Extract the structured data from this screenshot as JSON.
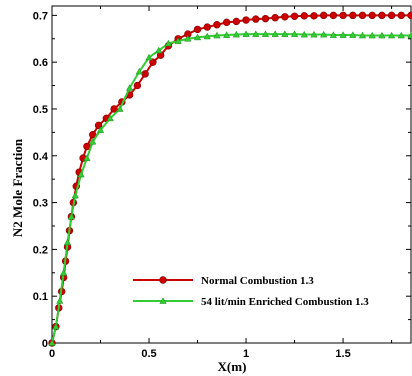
{
  "chart_data": {
    "type": "line",
    "xlabel": "X(m)",
    "ylabel": "N2 Mole Fraction",
    "xlim": [
      0,
      1.85
    ],
    "ylim": [
      0,
      0.72
    ],
    "x_ticks": [
      "0",
      "0.5",
      "1",
      "1.5"
    ],
    "y_ticks": [
      "0",
      "0.1",
      "0.2",
      "0.3",
      "0.4",
      "0.5",
      "0.6",
      "0.7"
    ],
    "x_tick_values": [
      0,
      0.5,
      1,
      1.5
    ],
    "y_tick_values": [
      0,
      0.1,
      0.2,
      0.3,
      0.4,
      0.5,
      0.6,
      0.7
    ],
    "legend_position": "lower-right",
    "grid": false,
    "series": [
      {
        "name": "Normal Combustion 1.3",
        "color": "#cc0000",
        "marker": "circle",
        "marker_color": "#cc0000",
        "x": [
          0,
          0.02,
          0.035,
          0.05,
          0.06,
          0.07,
          0.08,
          0.09,
          0.1,
          0.11,
          0.125,
          0.14,
          0.16,
          0.18,
          0.21,
          0.24,
          0.28,
          0.32,
          0.36,
          0.4,
          0.44,
          0.48,
          0.52,
          0.56,
          0.6,
          0.65,
          0.7,
          0.75,
          0.8,
          0.85,
          0.9,
          0.95,
          1.0,
          1.05,
          1.1,
          1.15,
          1.2,
          1.25,
          1.3,
          1.35,
          1.4,
          1.45,
          1.5,
          1.55,
          1.6,
          1.65,
          1.7,
          1.75,
          1.8,
          1.85
        ],
        "y": [
          0.0,
          0.035,
          0.075,
          0.11,
          0.14,
          0.175,
          0.205,
          0.24,
          0.27,
          0.3,
          0.335,
          0.365,
          0.395,
          0.42,
          0.445,
          0.465,
          0.48,
          0.5,
          0.515,
          0.53,
          0.55,
          0.575,
          0.6,
          0.615,
          0.635,
          0.65,
          0.66,
          0.67,
          0.675,
          0.68,
          0.685,
          0.687,
          0.69,
          0.692,
          0.693,
          0.695,
          0.697,
          0.698,
          0.699,
          0.699,
          0.7,
          0.7,
          0.7,
          0.7,
          0.7,
          0.7,
          0.7,
          0.7,
          0.7,
          0.7
        ]
      },
      {
        "name": "54 lit/min  Enriched Combustion 1.3",
        "color": "#33cc33",
        "marker": "triangle",
        "marker_color": "#33cc33",
        "x": [
          0,
          0.02,
          0.04,
          0.06,
          0.08,
          0.1,
          0.12,
          0.15,
          0.18,
          0.21,
          0.25,
          0.3,
          0.35,
          0.4,
          0.45,
          0.5,
          0.55,
          0.6,
          0.65,
          0.7,
          0.75,
          0.8,
          0.85,
          0.9,
          0.95,
          1.0,
          1.05,
          1.1,
          1.15,
          1.2,
          1.25,
          1.3,
          1.35,
          1.4,
          1.45,
          1.5,
          1.55,
          1.6,
          1.65,
          1.7,
          1.75,
          1.8,
          1.85
        ],
        "y": [
          0.0,
          0.035,
          0.09,
          0.15,
          0.215,
          0.27,
          0.315,
          0.36,
          0.395,
          0.43,
          0.455,
          0.48,
          0.5,
          0.545,
          0.58,
          0.61,
          0.625,
          0.64,
          0.645,
          0.65,
          0.653,
          0.655,
          0.657,
          0.658,
          0.659,
          0.66,
          0.66,
          0.66,
          0.66,
          0.66,
          0.66,
          0.659,
          0.659,
          0.659,
          0.658,
          0.658,
          0.658,
          0.657,
          0.657,
          0.657,
          0.657,
          0.657,
          0.657
        ]
      }
    ]
  }
}
